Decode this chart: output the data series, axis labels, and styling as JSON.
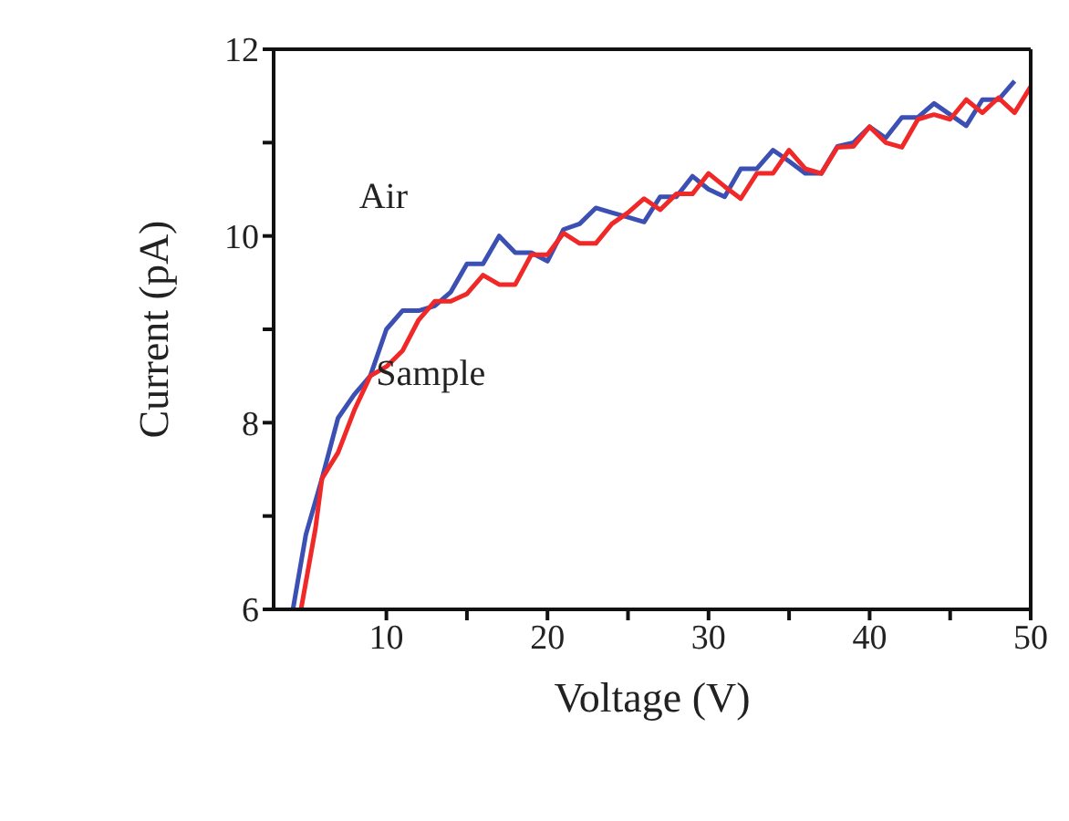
{
  "chart_data": {
    "type": "line",
    "xlabel": "Voltage  (V)",
    "ylabel": "Current  (pA)",
    "xlim": [
      3,
      50
    ],
    "ylim": [
      6,
      12
    ],
    "xticks": [
      10,
      {
        "value": 15,
        "label": null
      },
      20,
      {
        "value": 25,
        "label": null
      },
      30,
      {
        "value": 35,
        "label": null
      },
      40,
      {
        "value": 45,
        "label": null
      },
      50
    ],
    "yticks": [
      6,
      {
        "value": 7,
        "label": null
      },
      8,
      {
        "value": 9,
        "label": null
      },
      10,
      {
        "value": 11,
        "label": null
      },
      12
    ],
    "marker": "none",
    "line_style": "solid",
    "series": [
      {
        "name": "Air",
        "color": "#3c50b4",
        "x": [
          4.2,
          5,
          6,
          7,
          8,
          9,
          10,
          11,
          12,
          13,
          14,
          15,
          16,
          17,
          18,
          19,
          20,
          21,
          22,
          23,
          24,
          25,
          26,
          27,
          28,
          29,
          30,
          31,
          32,
          33,
          34,
          35,
          36,
          37,
          38,
          39,
          40,
          41,
          42,
          43,
          44,
          45,
          46,
          47,
          48,
          49
        ],
        "values": [
          6,
          6.8,
          7.4,
          8.05,
          8.3,
          8.5,
          9,
          9.2,
          9.2,
          9.25,
          9.4,
          9.7,
          9.7,
          10,
          9.82,
          9.82,
          9.73,
          10.07,
          10.13,
          10.3,
          10.25,
          10.2,
          10.15,
          10.42,
          10.42,
          10.64,
          10.5,
          10.42,
          10.72,
          10.72,
          10.92,
          10.8,
          10.67,
          10.67,
          10.96,
          11,
          11.17,
          11.05,
          11.27,
          11.27,
          11.42,
          11.3,
          11.18,
          11.46,
          11.46,
          11.66
        ]
      },
      {
        "name": "Sample",
        "color": "#f02828",
        "x": [
          4.7,
          5.6,
          6,
          7,
          8,
          9,
          10,
          11,
          12,
          13,
          14,
          15,
          16,
          17,
          18,
          19,
          20,
          21,
          22,
          23,
          24,
          25,
          26,
          27,
          28,
          29,
          30,
          31,
          32,
          33,
          34,
          35,
          36,
          37,
          38,
          39,
          40,
          41,
          42,
          43,
          44,
          45,
          46,
          47,
          48,
          49,
          50
        ],
        "values": [
          6,
          6.87,
          7.4,
          7.68,
          8.13,
          8.5,
          8.6,
          8.77,
          9.1,
          9.3,
          9.3,
          9.38,
          9.58,
          9.48,
          9.48,
          9.8,
          9.8,
          10.03,
          9.92,
          9.92,
          10.13,
          10.25,
          10.4,
          10.28,
          10.45,
          10.45,
          10.67,
          10.53,
          10.4,
          10.67,
          10.67,
          10.92,
          10.72,
          10.67,
          10.95,
          10.96,
          11.17,
          11,
          10.95,
          11.25,
          11.3,
          11.25,
          11.46,
          11.32,
          11.48,
          11.32,
          11.6
        ]
      }
    ]
  }
}
